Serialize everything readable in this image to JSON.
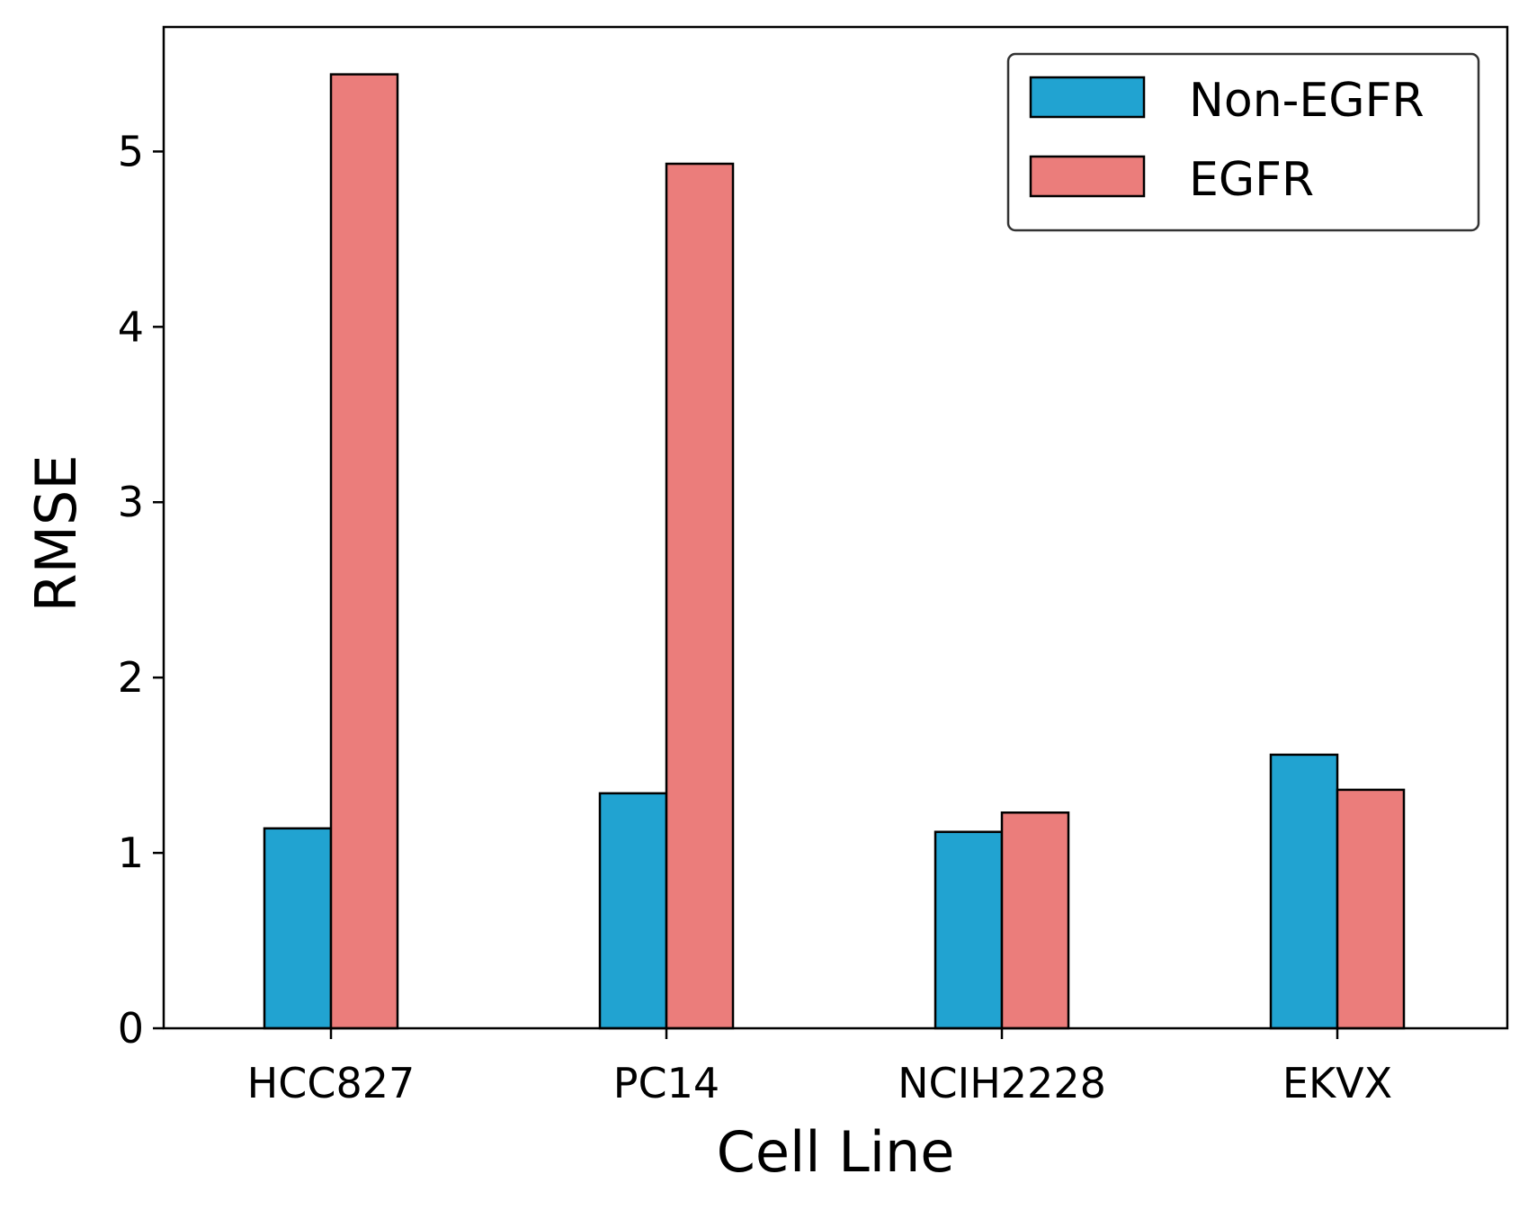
{
  "chart_data": {
    "type": "bar",
    "title": "",
    "xlabel": "Cell Line",
    "ylabel": "RMSE",
    "categories": [
      "HCC827",
      "PC14",
      "NCIH2228",
      "EKVX"
    ],
    "series": [
      {
        "name": "Non-EGFR",
        "values": [
          1.14,
          1.34,
          1.12,
          1.56
        ],
        "color": "#21a3d1"
      },
      {
        "name": "EGFR",
        "values": [
          5.44,
          4.93,
          1.23,
          1.36
        ],
        "color": "#eb7d7b"
      }
    ],
    "ylim": [
      0,
      5.71
    ],
    "yticks": [
      "0",
      "1",
      "2",
      "3",
      "4",
      "5"
    ],
    "legend_position": "top-right",
    "grid": false
  }
}
